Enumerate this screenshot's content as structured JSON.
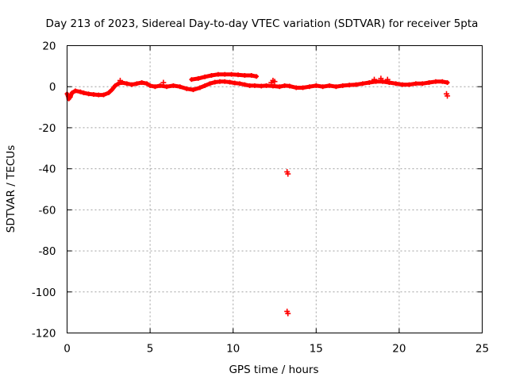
{
  "chart_data": {
    "type": "scatter",
    "title": "Day 213 of 2023, Sidereal Day-to-day VTEC variation (SDTVAR) for receiver 5pta",
    "xlabel": "GPS time / hours",
    "ylabel": "SDTVAR / TECUs",
    "xlim": [
      0,
      25
    ],
    "ylim": [
      -120,
      20
    ],
    "xticks": [
      0,
      5,
      10,
      15,
      20,
      25
    ],
    "yticks": [
      20,
      0,
      -20,
      -40,
      -60,
      -80,
      -100,
      -120
    ],
    "grid": true,
    "color": "#ff0000",
    "series": [
      {
        "name": "main_band",
        "points": [
          [
            0.0,
            -3.5
          ],
          [
            0.1,
            -6
          ],
          [
            0.2,
            -5
          ],
          [
            0.3,
            -3
          ],
          [
            0.5,
            -2
          ],
          [
            0.8,
            -2.5
          ],
          [
            1.0,
            -3
          ],
          [
            1.3,
            -3.5
          ],
          [
            1.6,
            -3.8
          ],
          [
            1.9,
            -4
          ],
          [
            2.2,
            -4
          ],
          [
            2.5,
            -3
          ],
          [
            2.7,
            -1.5
          ],
          [
            2.9,
            0.5
          ],
          [
            3.1,
            1.5
          ],
          [
            3.3,
            2
          ],
          [
            3.6,
            1.5
          ],
          [
            3.9,
            1
          ],
          [
            4.2,
            1.5
          ],
          [
            4.5,
            2
          ],
          [
            4.8,
            1.5
          ],
          [
            5.0,
            0.5
          ],
          [
            5.3,
            0
          ],
          [
            5.6,
            0.5
          ],
          [
            6.0,
            0
          ],
          [
            6.4,
            0.5
          ],
          [
            6.8,
            0
          ],
          [
            7.2,
            -1
          ],
          [
            7.6,
            -1.5
          ],
          [
            8.0,
            -0.5
          ],
          [
            8.3,
            0.5
          ],
          [
            8.6,
            1.5
          ],
          [
            8.9,
            2.2
          ],
          [
            9.2,
            2.5
          ],
          [
            9.5,
            2.5
          ],
          [
            9.8,
            2.2
          ],
          [
            10.1,
            1.8
          ],
          [
            10.4,
            1.5
          ],
          [
            10.7,
            1
          ],
          [
            11.0,
            0.5
          ],
          [
            11.3,
            0.5
          ],
          [
            11.7,
            0.3
          ],
          [
            12.0,
            0.5
          ],
          [
            12.4,
            0.3
          ],
          [
            12.8,
            0
          ],
          [
            13.1,
            0.5
          ],
          [
            13.4,
            0.3
          ],
          [
            13.8,
            -0.5
          ],
          [
            14.2,
            -0.5
          ],
          [
            14.6,
            0
          ],
          [
            15.0,
            0.5
          ],
          [
            15.4,
            0
          ],
          [
            15.8,
            0.5
          ],
          [
            16.2,
            0
          ],
          [
            16.6,
            0.5
          ],
          [
            17.0,
            0.8
          ],
          [
            17.4,
            1
          ],
          [
            17.8,
            1.5
          ],
          [
            18.2,
            2
          ],
          [
            18.6,
            2.5
          ],
          [
            19.0,
            2.5
          ],
          [
            19.4,
            2
          ],
          [
            19.8,
            1.5
          ],
          [
            20.2,
            1
          ],
          [
            20.6,
            1
          ],
          [
            21.0,
            1.5
          ],
          [
            21.4,
            1.5
          ],
          [
            21.8,
            2
          ],
          [
            22.2,
            2.5
          ],
          [
            22.6,
            2.5
          ],
          [
            22.9,
            2
          ]
        ]
      },
      {
        "name": "upper_band",
        "points": [
          [
            7.5,
            3.5
          ],
          [
            7.9,
            4
          ],
          [
            8.3,
            4.8
          ],
          [
            8.7,
            5.5
          ],
          [
            9.1,
            6
          ],
          [
            9.5,
            6
          ],
          [
            9.9,
            6
          ],
          [
            10.3,
            5.8
          ],
          [
            10.7,
            5.5
          ],
          [
            11.1,
            5.5
          ],
          [
            11.4,
            5
          ]
        ]
      },
      {
        "name": "spikes",
        "points": [
          [
            12.3,
            2
          ],
          [
            12.4,
            3
          ],
          [
            12.5,
            2.5
          ],
          [
            18.5,
            3.5
          ],
          [
            18.9,
            4
          ],
          [
            19.3,
            3.5
          ],
          [
            5.8,
            2
          ],
          [
            3.2,
            3
          ]
        ]
      },
      {
        "name": "outliers",
        "points": [
          [
            13.25,
            -41.5
          ],
          [
            13.3,
            -42.5
          ],
          [
            13.25,
            -109.5
          ],
          [
            13.3,
            -110.5
          ],
          [
            22.85,
            -3.5
          ],
          [
            22.9,
            -4.5
          ]
        ]
      }
    ]
  }
}
